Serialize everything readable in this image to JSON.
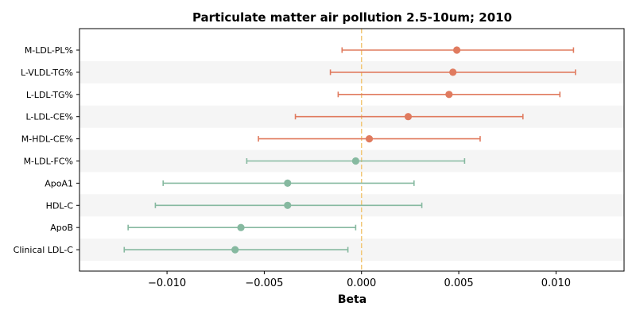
{
  "chart_data": {
    "type": "forest",
    "title": "Particulate matter air pollution 2.5-10um; 2010",
    "xlabel": "Beta",
    "ylabel": "",
    "xlim": [
      -0.0145,
      0.0135
    ],
    "xticks": [
      -0.01,
      -0.005,
      0.0,
      0.005,
      0.01
    ],
    "xtick_labels": [
      "−0.010",
      "−0.005",
      "0.000",
      "0.005",
      "0.010"
    ],
    "reference_line": 0.0,
    "colors": {
      "positive": "#e07b5f",
      "negative": "#86b9a0",
      "reference": "#f2c777",
      "band": "#f5f5f5"
    },
    "points": [
      {
        "label": "M-LDL-PL%",
        "beta": 0.0049,
        "ci_low": -0.001,
        "ci_high": 0.0109
      },
      {
        "label": "L-VLDL-TG%",
        "beta": 0.0047,
        "ci_low": -0.0016,
        "ci_high": 0.011
      },
      {
        "label": "L-LDL-TG%",
        "beta": 0.0045,
        "ci_low": -0.0012,
        "ci_high": 0.0102
      },
      {
        "label": "L-LDL-CE%",
        "beta": 0.0024,
        "ci_low": -0.0034,
        "ci_high": 0.0083
      },
      {
        "label": "M-HDL-CE%",
        "beta": 0.0004,
        "ci_low": -0.0053,
        "ci_high": 0.0061
      },
      {
        "label": "M-LDL-FC%",
        "beta": -0.0003,
        "ci_low": -0.0059,
        "ci_high": 0.0053
      },
      {
        "label": "ApoA1",
        "beta": -0.0038,
        "ci_low": -0.0102,
        "ci_high": 0.0027
      },
      {
        "label": "HDL-C",
        "beta": -0.0038,
        "ci_low": -0.0106,
        "ci_high": 0.0031
      },
      {
        "label": "ApoB",
        "beta": -0.0062,
        "ci_low": -0.012,
        "ci_high": -0.0003
      },
      {
        "label": "Clinical LDL-C",
        "beta": -0.0065,
        "ci_low": -0.0122,
        "ci_high": -0.0007
      }
    ]
  }
}
